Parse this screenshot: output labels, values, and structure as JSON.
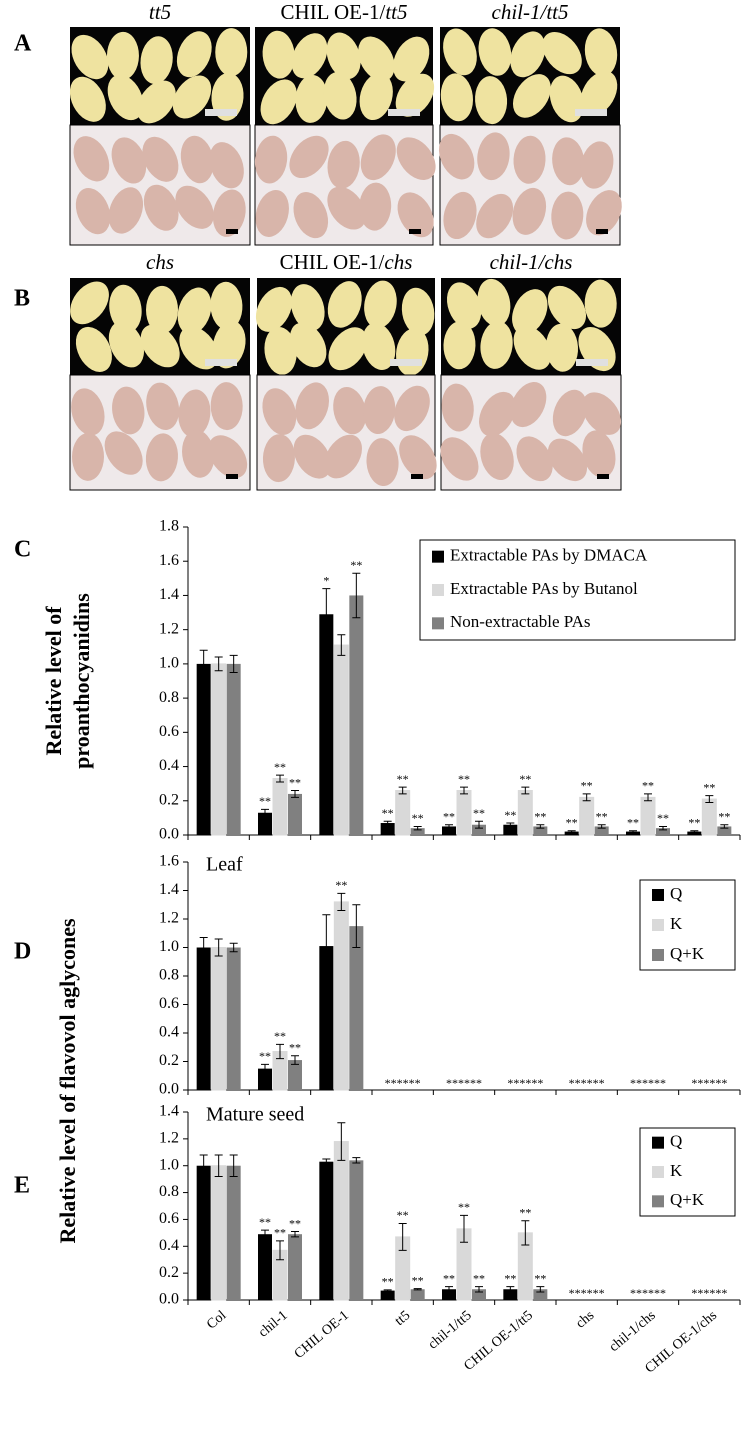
{
  "panels": [
    {
      "label": "A",
      "titles": [
        [
          {
            "t": "tt5",
            "i": true
          }
        ],
        [
          {
            "t": "CHIL OE-1/",
            "i": false
          },
          {
            "t": "tt5",
            "i": true
          }
        ],
        [
          {
            "t": "chil-1/tt5",
            "i": true
          }
        ]
      ]
    },
    {
      "label": "B",
      "titles": [
        [
          {
            "t": "chs",
            "i": true
          }
        ],
        [
          {
            "t": "CHIL OE-1/",
            "i": false
          },
          {
            "t": "chs",
            "i": true
          }
        ],
        [
          {
            "t": "chil-1/chs",
            "i": true
          }
        ]
      ]
    }
  ],
  "chart_data": [
    {
      "type": "bar",
      "panel_label": "C",
      "ylabel": [
        "Relative  level of",
        "proanthocyanidins"
      ],
      "ylim": [
        0,
        1.8
      ],
      "yticks": [
        {
          "value": 0,
          "label": "0.0"
        },
        {
          "value": 0.2,
          "label": "0.2"
        },
        {
          "value": 0.4,
          "label": "0.4"
        },
        {
          "value": 0.6,
          "label": "0.6"
        },
        {
          "value": 0.8,
          "label": "0.8"
        },
        {
          "value": 1.0,
          "label": "1.0"
        },
        {
          "value": 1.2,
          "label": "1.2"
        },
        {
          "value": 1.4,
          "label": "1.4"
        },
        {
          "value": 1.6,
          "label": "1.6"
        },
        {
          "value": 1.8,
          "label": "1.8"
        }
      ],
      "legend": "top-right",
      "series": [
        {
          "name": "Extractable PAs by DMACA",
          "color": "#000000",
          "values": [
            1.0,
            0.13,
            1.29,
            0.07,
            0.05,
            0.06,
            0.02,
            0.02,
            0.02
          ],
          "errors": [
            0.08,
            0.02,
            0.15,
            0.01,
            0.01,
            0.01,
            0.005,
            0.005,
            0.005
          ],
          "significance": [
            null,
            "**",
            "*",
            "**",
            "**",
            "**",
            "**",
            "**",
            "**"
          ]
        },
        {
          "name": "Extractable PAs by Butanol",
          "color": "#d9d9d9",
          "values": [
            1.0,
            0.33,
            1.11,
            0.26,
            0.26,
            0.26,
            0.22,
            0.22,
            0.21
          ],
          "errors": [
            0.04,
            0.02,
            0.06,
            0.02,
            0.02,
            0.02,
            0.02,
            0.02,
            0.02
          ],
          "significance": [
            null,
            "**",
            null,
            "**",
            "**",
            "**",
            "**",
            "**",
            "**"
          ]
        },
        {
          "name": "Non-extractable PAs",
          "color": "#808080",
          "values": [
            1.0,
            0.24,
            1.4,
            0.04,
            0.06,
            0.05,
            0.05,
            0.04,
            0.05
          ],
          "errors": [
            0.05,
            0.02,
            0.13,
            0.01,
            0.02,
            0.01,
            0.01,
            0.01,
            0.01
          ],
          "significance": [
            null,
            "**",
            "**",
            "**",
            "**",
            "**",
            "**",
            "**",
            "**"
          ]
        }
      ]
    },
    {
      "type": "bar",
      "panel_label": "D",
      "title": "Leaf",
      "ylabel": [
        "Relative level of flavovol aglycones"
      ],
      "ylim": [
        0,
        1.6
      ],
      "yticks": [
        {
          "value": 0,
          "label": "0.0"
        },
        {
          "value": 0.2,
          "label": "0.2"
        },
        {
          "value": 0.4,
          "label": "0.4"
        },
        {
          "value": 0.6,
          "label": "0.6"
        },
        {
          "value": 0.8,
          "label": "0.8"
        },
        {
          "value": 1.0,
          "label": "1.0"
        },
        {
          "value": 1.2,
          "label": "1.2"
        },
        {
          "value": 1.4,
          "label": "1.4"
        },
        {
          "value": 1.6,
          "label": "1.6"
        }
      ],
      "legend": "top-right",
      "group_labels": [
        null,
        null,
        null,
        "******",
        "******",
        "******",
        "******",
        "******",
        "******"
      ],
      "series": [
        {
          "name": "Q",
          "color": "#000000",
          "values": [
            1.0,
            0.15,
            1.01,
            null,
            null,
            null,
            null,
            null,
            null
          ],
          "errors": [
            0.07,
            0.03,
            0.22,
            null,
            null,
            null,
            null,
            null,
            null
          ],
          "significance": [
            null,
            "**",
            null,
            null,
            null,
            null,
            null,
            null,
            null
          ]
        },
        {
          "name": "K",
          "color": "#d9d9d9",
          "values": [
            1.0,
            0.27,
            1.32,
            null,
            null,
            null,
            null,
            null,
            null
          ],
          "errors": [
            0.06,
            0.05,
            0.06,
            null,
            null,
            null,
            null,
            null,
            null
          ],
          "significance": [
            null,
            "**",
            "**",
            null,
            null,
            null,
            null,
            null,
            null
          ]
        },
        {
          "name": "Q+K",
          "color": "#808080",
          "values": [
            1.0,
            0.21,
            1.15,
            null,
            null,
            null,
            null,
            null,
            null
          ],
          "errors": [
            0.03,
            0.03,
            0.15,
            null,
            null,
            null,
            null,
            null,
            null
          ],
          "significance": [
            null,
            "**",
            null,
            null,
            null,
            null,
            null,
            null,
            null
          ]
        }
      ]
    },
    {
      "type": "bar",
      "panel_label": "E",
      "title": "Mature seed",
      "categories": [
        "Col",
        "chil-1",
        "CHIL OE-1",
        "tt5",
        "chil-1/tt5",
        "CHIL OE-1/tt5",
        "chs",
        "chil-1/chs",
        "CHIL OE-1/chs"
      ],
      "ylim": [
        0,
        1.4
      ],
      "yticks": [
        {
          "value": 0,
          "label": "0.0"
        },
        {
          "value": 0.2,
          "label": "0.2"
        },
        {
          "value": 0.4,
          "label": "0.4"
        },
        {
          "value": 0.6,
          "label": "0.6"
        },
        {
          "value": 0.8,
          "label": "0.8"
        },
        {
          "value": 1.0,
          "label": "1.0"
        },
        {
          "value": 1.2,
          "label": "1.2"
        },
        {
          "value": 1.4,
          "label": "1.4"
        }
      ],
      "legend": "top-right",
      "group_labels": [
        null,
        null,
        null,
        null,
        null,
        null,
        "******",
        "******",
        "******"
      ],
      "series": [
        {
          "name": "Q",
          "color": "#000000",
          "values": [
            1.0,
            0.49,
            1.03,
            0.07,
            0.08,
            0.08,
            null,
            null,
            null
          ],
          "errors": [
            0.08,
            0.03,
            0.02,
            0.005,
            0.02,
            0.02,
            null,
            null,
            null
          ],
          "significance": [
            null,
            "**",
            null,
            "**",
            "**",
            "**",
            null,
            null,
            null
          ]
        },
        {
          "name": "K",
          "color": "#d9d9d9",
          "values": [
            1.0,
            0.37,
            1.18,
            0.47,
            0.53,
            0.5,
            null,
            null,
            null
          ],
          "errors": [
            0.08,
            0.07,
            0.14,
            0.1,
            0.1,
            0.09,
            null,
            null,
            null
          ],
          "significance": [
            null,
            "**",
            null,
            "**",
            "**",
            "**",
            null,
            null,
            null
          ]
        },
        {
          "name": "Q+K",
          "color": "#808080",
          "values": [
            1.0,
            0.49,
            1.04,
            0.08,
            0.08,
            0.08,
            null,
            null,
            null
          ],
          "errors": [
            0.08,
            0.02,
            0.02,
            0.005,
            0.02,
            0.02,
            null,
            null,
            null
          ],
          "significance": [
            null,
            "**",
            null,
            "**",
            "**",
            "**",
            null,
            null,
            null
          ]
        }
      ]
    }
  ]
}
